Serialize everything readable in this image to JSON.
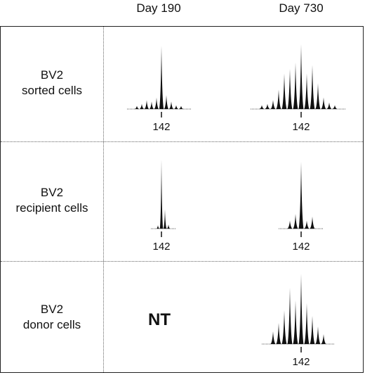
{
  "columns": [
    {
      "label": "Day 190"
    },
    {
      "label": "Day 730"
    }
  ],
  "rows": [
    {
      "line1": "BV2",
      "line2": "sorted cells"
    },
    {
      "line1": "BV2",
      "line2": "recipient cells"
    },
    {
      "line1": "BV2",
      "line2": "donor cells"
    }
  ],
  "not_tested_label": "NT",
  "peak_marker": "142",
  "spectratypes": [
    {
      "id": "sorted-day190",
      "peaks": [
        0.05,
        0.08,
        0.14,
        0.12,
        0.18,
        1.0,
        0.22,
        0.12,
        0.06,
        0.05
      ]
    },
    {
      "id": "sorted-day730",
      "peaks": [
        0.06,
        0.08,
        0.14,
        0.3,
        0.55,
        0.62,
        0.72,
        1.0,
        0.55,
        0.68,
        0.4,
        0.18,
        0.1,
        0.06
      ]
    },
    {
      "id": "recipient-day190",
      "peaks": [
        0.05,
        1.0,
        0.28,
        0.06
      ]
    },
    {
      "id": "recipient-day730",
      "peaks": [
        0.12,
        0.22,
        1.0,
        0.12,
        0.18
      ]
    },
    {
      "id": "donor-day730",
      "peaks": [
        0.18,
        0.3,
        0.48,
        0.8,
        0.62,
        1.0,
        0.58,
        0.4,
        0.25,
        0.14
      ]
    }
  ]
}
